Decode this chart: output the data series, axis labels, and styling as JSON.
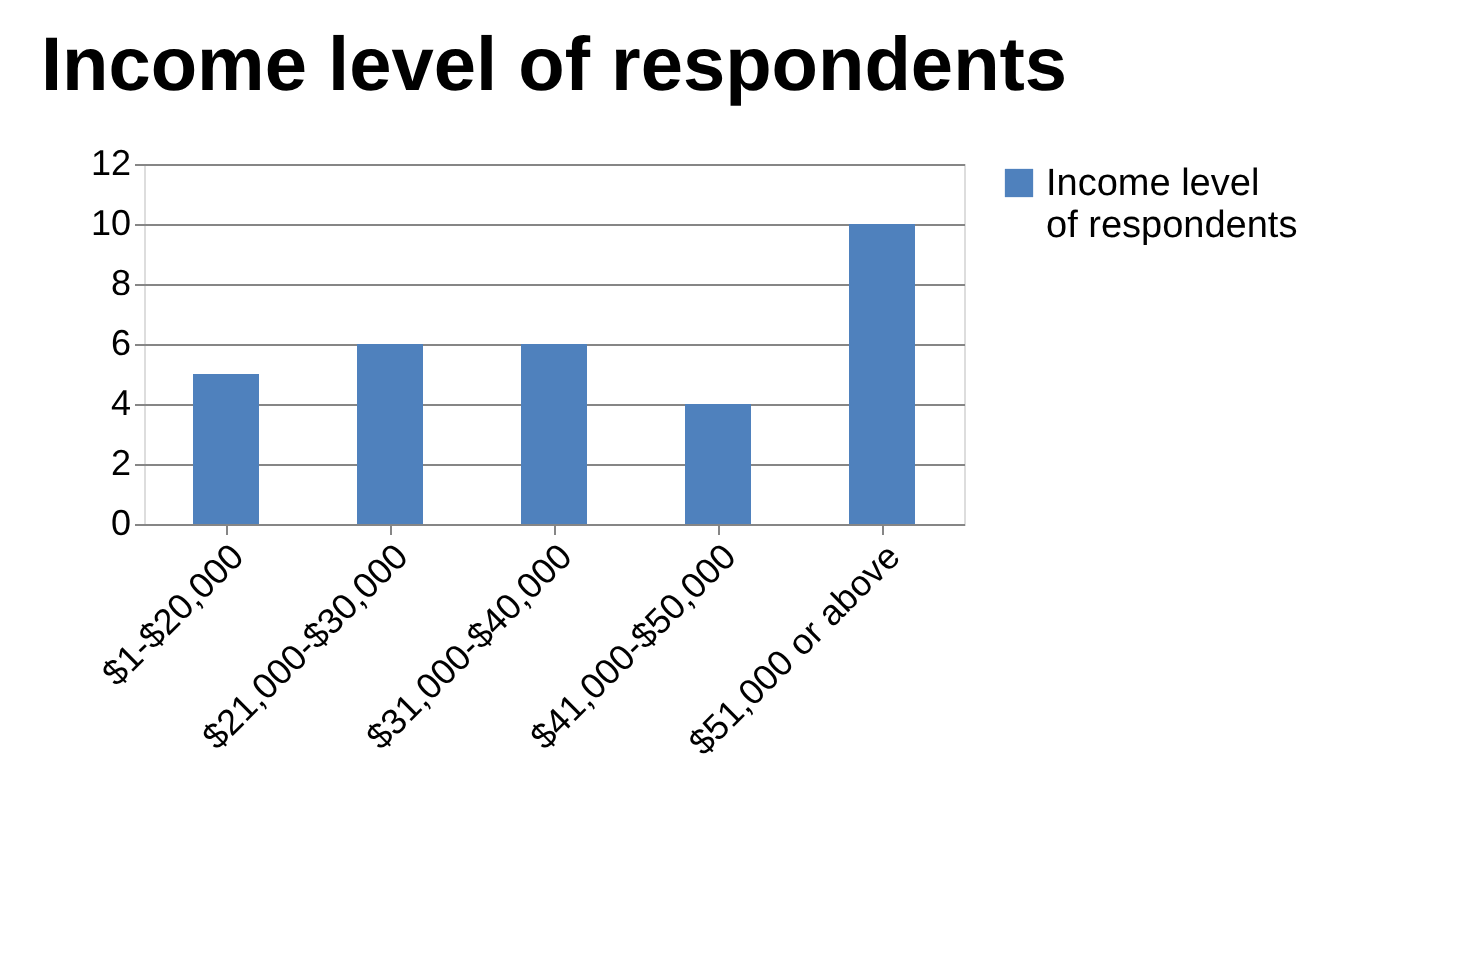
{
  "chart_data": {
    "type": "bar",
    "title": "Income level of respondents",
    "categories": [
      "$1-$20,000",
      "$21,000-$30,000",
      "$31,000-$40,000",
      "$41,000-$50,000",
      "$51,000 or above"
    ],
    "series": [
      {
        "name": "Income level of respondents",
        "color": "#4f81bd",
        "values": [
          5,
          6,
          6,
          4,
          10
        ]
      }
    ],
    "ylim": [
      0,
      12
    ],
    "yticks": [
      0,
      2,
      4,
      6,
      8,
      10,
      12
    ],
    "grid": "y",
    "legend": "right"
  }
}
